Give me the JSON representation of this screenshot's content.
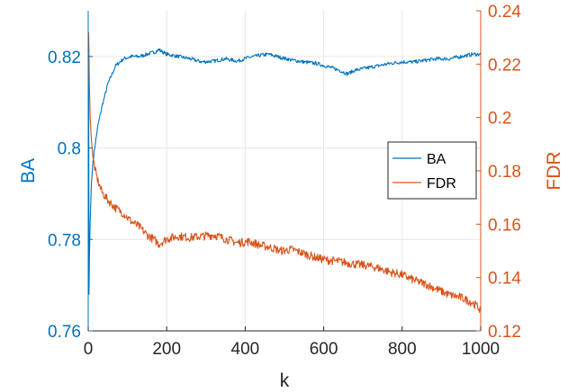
{
  "chart_data": {
    "type": "line",
    "title": "",
    "xlabel": "k",
    "ylabel_left": "BA",
    "ylabel_right": "FDR",
    "xlim": [
      0,
      1000
    ],
    "ylim_left": [
      0.76,
      0.83
    ],
    "ylim_right": [
      0.12,
      0.24
    ],
    "x_ticks": [
      0,
      200,
      400,
      600,
      800,
      1000
    ],
    "x_tick_labels": [
      "0",
      "200",
      "400",
      "600",
      "800",
      "1000"
    ],
    "left_ticks": [
      0.76,
      0.78,
      0.8,
      0.82
    ],
    "left_tick_labels": [
      "0.76",
      "0.78",
      "0.8",
      "0.82"
    ],
    "right_ticks": [
      0.12,
      0.14,
      0.16,
      0.18,
      0.2,
      0.22,
      0.24
    ],
    "right_tick_labels": [
      "0.12",
      "0.14",
      "0.16",
      "0.18",
      "0.2",
      "0.22",
      "0.24"
    ],
    "grid": true,
    "legend_position": "right",
    "colors": {
      "left_axis": "#0072BD",
      "right_axis": "#D95319",
      "grid": "#e6e6e6"
    },
    "series": [
      {
        "name": "BA",
        "axis": "left",
        "color": "#0072BD",
        "x": [
          1,
          2,
          3,
          5,
          8,
          12,
          18,
          25,
          35,
          50,
          70,
          90,
          110,
          130,
          150,
          170,
          180,
          200,
          230,
          260,
          290,
          320,
          350,
          380,
          410,
          440,
          460,
          490,
          520,
          550,
          580,
          610,
          640,
          660,
          680,
          710,
          740,
          770,
          800,
          830,
          860,
          890,
          920,
          950,
          980,
          1000
        ],
        "y": [
          0.825,
          0.768,
          0.776,
          0.784,
          0.792,
          0.797,
          0.801,
          0.805,
          0.809,
          0.814,
          0.818,
          0.8195,
          0.82,
          0.82,
          0.8205,
          0.821,
          0.8215,
          0.8205,
          0.82,
          0.8195,
          0.8188,
          0.819,
          0.8195,
          0.819,
          0.8198,
          0.8203,
          0.8205,
          0.8198,
          0.8192,
          0.8188,
          0.8185,
          0.8178,
          0.817,
          0.8162,
          0.817,
          0.8175,
          0.818,
          0.8185,
          0.8188,
          0.8188,
          0.8192,
          0.8195,
          0.8195,
          0.82,
          0.8205,
          0.8205
        ]
      },
      {
        "name": "FDR",
        "axis": "right",
        "color": "#D95319",
        "x": [
          1,
          2,
          3,
          5,
          8,
          12,
          18,
          25,
          35,
          50,
          70,
          90,
          110,
          130,
          150,
          170,
          180,
          200,
          230,
          260,
          290,
          320,
          350,
          380,
          410,
          440,
          460,
          490,
          520,
          550,
          580,
          610,
          640,
          660,
          680,
          710,
          740,
          770,
          800,
          830,
          860,
          890,
          920,
          950,
          980,
          1000
        ],
        "y": [
          0.232,
          0.225,
          0.212,
          0.2,
          0.192,
          0.185,
          0.18,
          0.176,
          0.172,
          0.169,
          0.166,
          0.164,
          0.161,
          0.159,
          0.156,
          0.154,
          0.1525,
          0.1545,
          0.1555,
          0.155,
          0.1555,
          0.156,
          0.1545,
          0.153,
          0.1535,
          0.152,
          0.1515,
          0.15,
          0.1505,
          0.149,
          0.1475,
          0.1465,
          0.146,
          0.1455,
          0.145,
          0.1445,
          0.1435,
          0.142,
          0.141,
          0.139,
          0.1375,
          0.1355,
          0.1335,
          0.1325,
          0.1305,
          0.128
        ]
      }
    ]
  }
}
